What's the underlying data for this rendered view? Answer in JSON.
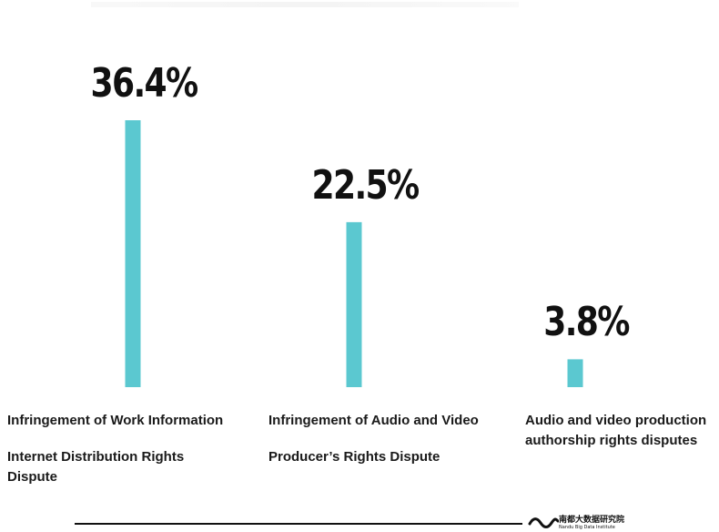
{
  "chart_data": {
    "type": "bar",
    "categories": [
      "Infringement of Work Information Internet Distribution Rights Dispute",
      "Infringement of Audio and Video Producer’s Rights Dispute",
      "Audio and video production authorship rights disputes"
    ],
    "values": [
      36.4,
      22.5,
      3.8
    ],
    "value_labels": [
      "36.4%",
      "22.5%",
      "3.8%"
    ],
    "title": "",
    "xlabel": "",
    "ylabel": "",
    "ylim": [
      0,
      36.4
    ],
    "grid": false,
    "legend": "none",
    "bar_color": "#5bc8d0"
  },
  "labels": {
    "cat1_line1": "Infringement of Work Information",
    "cat1_line2": "Internet Distribution Rights",
    "cat1_line3": "Dispute",
    "cat2_line1": "Infringement of Audio and Video",
    "cat2_line2": "Producer’s Rights Dispute",
    "cat3_line1": "Audio and video production",
    "cat3_line2": "authorship rights disputes"
  },
  "footer": {
    "logo_cn": "南都大数据研究院",
    "logo_en": "Nandu Big Data Institute"
  }
}
